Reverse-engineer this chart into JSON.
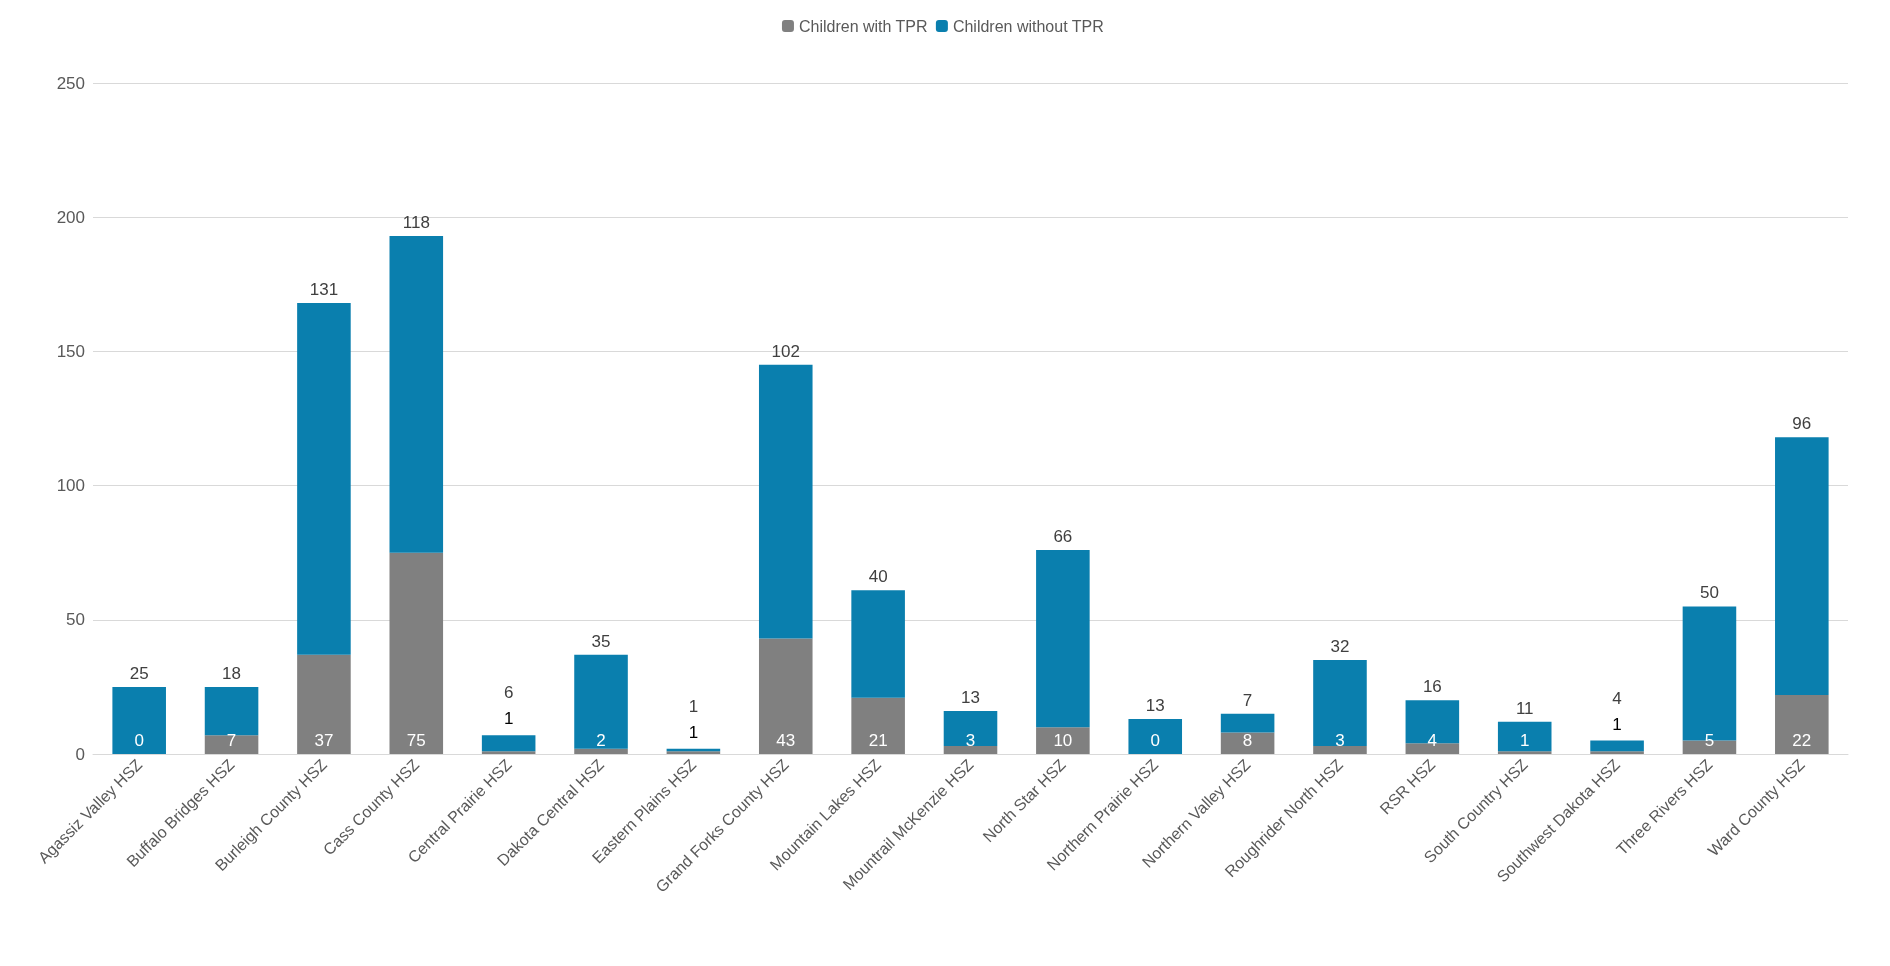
{
  "chart_data": {
    "type": "bar",
    "stacked": true,
    "categories": [
      "Agassiz Valley HSZ",
      "Buffalo Bridges HSZ",
      "Burleigh County HSZ",
      "Cass County HSZ",
      "Central Prairie HSZ",
      "Dakota Central HSZ",
      "Eastern Plains HSZ",
      "Grand Forks County HSZ",
      "Mountain Lakes HSZ",
      "Mountrail McKenzie HSZ",
      "North Star HSZ",
      "Northern Prairie HSZ",
      "Northern Valley HSZ",
      "Roughrider North HSZ",
      "RSR HSZ",
      "South Country HSZ",
      "Southwest Dakota HSZ",
      "Three Rivers HSZ",
      "Ward County HSZ"
    ],
    "series": [
      {
        "name": "Children with TPR",
        "color": "#808080",
        "values": [
          0,
          7,
          37,
          75,
          1,
          2,
          1,
          43,
          21,
          3,
          10,
          0,
          8,
          3,
          4,
          1,
          1,
          5,
          22
        ]
      },
      {
        "name": "Children without TPR",
        "color": "#0a7fae",
        "values": [
          25,
          18,
          131,
          118,
          6,
          35,
          1,
          102,
          40,
          13,
          66,
          13,
          7,
          32,
          16,
          11,
          4,
          50,
          96
        ]
      }
    ],
    "ylim": [
      0,
      250
    ],
    "yticks": [
      0,
      50,
      100,
      150,
      200,
      250
    ],
    "grid": "y",
    "legend": "top",
    "data_labels": true
  }
}
